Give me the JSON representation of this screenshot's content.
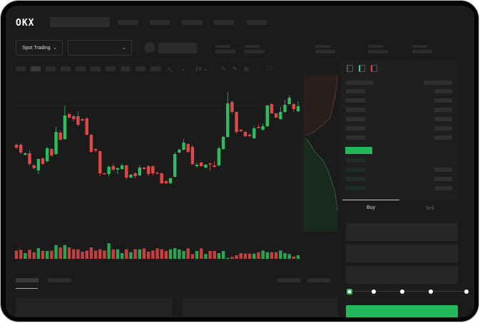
{
  "header": {
    "logo": "OKX"
  },
  "market": {
    "mode_label": "Spot Trading",
    "mode_icon": "chevron-down-icon",
    "pair_icon": "chevron-down-icon"
  },
  "trade": {
    "buy_tab": "Buy",
    "sell_tab": "Sell",
    "active_tab": "Buy",
    "slider_percent": 0
  },
  "colors": {
    "up": "#2bbd5e",
    "down": "#e04848",
    "background": "#1b1b1b",
    "accent": "#23b85a"
  },
  "chart_data": {
    "type": "candlestick",
    "candles": [
      [
        57,
        53,
        59,
        51
      ],
      [
        57,
        46,
        59,
        44
      ],
      [
        43,
        45,
        46,
        42
      ],
      [
        45,
        30,
        49,
        28
      ],
      [
        28,
        24,
        30,
        22
      ],
      [
        21,
        37,
        38,
        16
      ],
      [
        38,
        30,
        39,
        29
      ],
      [
        34,
        52,
        54,
        32
      ],
      [
        51,
        42,
        52,
        40
      ],
      [
        44,
        75,
        82,
        43
      ],
      [
        74,
        64,
        77,
        63
      ],
      [
        65,
        98,
        112,
        64
      ],
      [
        100,
        95,
        102,
        94
      ],
      [
        97,
        93,
        99,
        90
      ],
      [
        97,
        85,
        104,
        83
      ],
      [
        93,
        91,
        94,
        90
      ],
      [
        94,
        71,
        96,
        70
      ],
      [
        71,
        47,
        72,
        46
      ],
      [
        51,
        49,
        52,
        46
      ],
      [
        48,
        17,
        49,
        13
      ],
      [
        17,
        16,
        18,
        15
      ],
      [
        16,
        26,
        28,
        13
      ],
      [
        27,
        22,
        31,
        20
      ],
      [
        22,
        24,
        25,
        16
      ],
      [
        23,
        28,
        31,
        22
      ],
      [
        28,
        11,
        29,
        8
      ],
      [
        11,
        15,
        16,
        10
      ],
      [
        17,
        13,
        18,
        10
      ],
      [
        14,
        25,
        28,
        13
      ],
      [
        25,
        23,
        26,
        22
      ],
      [
        27,
        16,
        28,
        13
      ],
      [
        27,
        17,
        28,
        14
      ],
      [
        18,
        17,
        19,
        16
      ],
      [
        17,
        3,
        18,
        2
      ],
      [
        6,
        3,
        7,
        2
      ],
      [
        3,
        10,
        11,
        2
      ],
      [
        12,
        44,
        47,
        11
      ],
      [
        46,
        50,
        52,
        45
      ],
      [
        50,
        60,
        65,
        49
      ],
      [
        58,
        47,
        59,
        46
      ],
      [
        54,
        30,
        57,
        28
      ],
      [
        27,
        29,
        32,
        25
      ],
      [
        32,
        27,
        33,
        26
      ],
      [
        25,
        29,
        30,
        24
      ],
      [
        31,
        30,
        32,
        20
      ],
      [
        28,
        26,
        34,
        25
      ],
      [
        28,
        52,
        55,
        27
      ],
      [
        51,
        68,
        70,
        50
      ],
      [
        68,
        115,
        131,
        67
      ],
      [
        117,
        103,
        119,
        100
      ],
      [
        103,
        75,
        104,
        72
      ],
      [
        78,
        76,
        79,
        75
      ],
      [
        75,
        69,
        76,
        68
      ],
      [
        71,
        69,
        73,
        68
      ],
      [
        66,
        80,
        83,
        65
      ],
      [
        82,
        81,
        86,
        80
      ],
      [
        78,
        83,
        87,
        77
      ],
      [
        83,
        112,
        113,
        82
      ],
      [
        114,
        101,
        115,
        100
      ],
      [
        101,
        95,
        102,
        94
      ],
      [
        93,
        103,
        110,
        92
      ],
      [
        103,
        113,
        120,
        102
      ],
      [
        114,
        123,
        127,
        113
      ],
      [
        114,
        107,
        115,
        103
      ],
      [
        104,
        111,
        118,
        103
      ]
    ],
    "volumes": [
      35,
      38,
      24,
      38,
      28,
      45,
      34,
      33,
      34,
      58,
      48,
      58,
      48,
      40,
      40,
      30,
      35,
      48,
      35,
      40,
      35,
      65,
      40,
      40,
      24,
      40,
      28,
      40,
      40,
      44,
      30,
      35,
      44,
      40,
      33,
      40,
      45,
      40,
      33,
      44,
      20,
      33,
      44,
      20,
      33,
      33,
      24,
      33,
      4,
      8,
      15,
      24,
      22,
      22,
      22,
      28,
      35,
      28,
      28,
      28,
      35,
      24,
      20,
      10,
      15
    ]
  }
}
